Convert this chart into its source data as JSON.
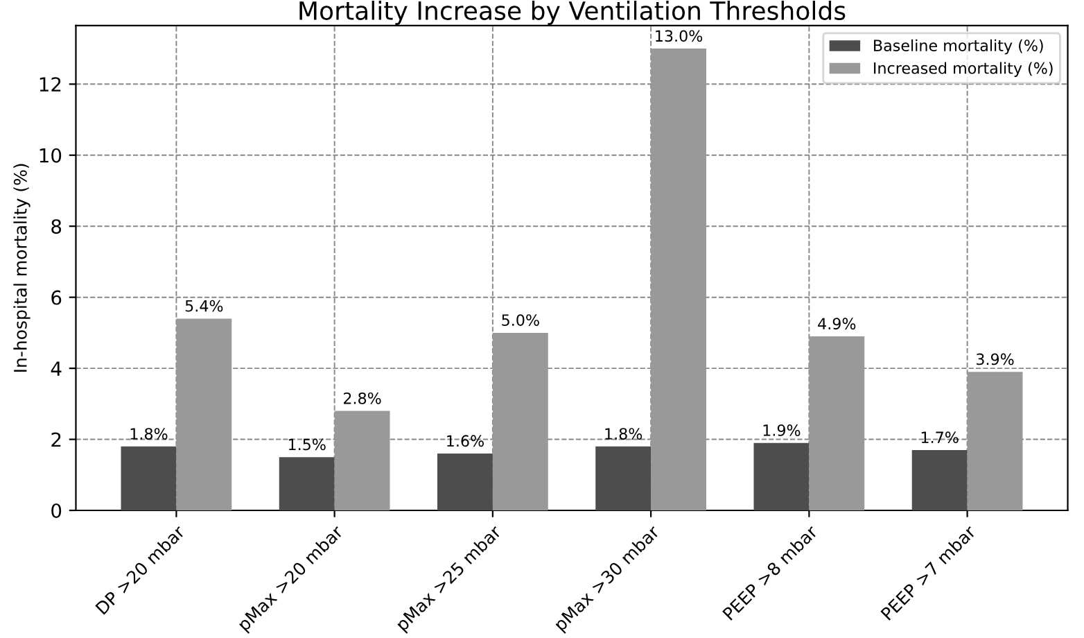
{
  "chart_data": {
    "type": "bar",
    "title": "Mortality Increase by Ventilation Thresholds",
    "ylabel": "In-hospital mortality (%)",
    "categories": [
      "DP >20 mbar",
      "pMax >20 mbar",
      "pMax >25 mbar",
      "pMax >30 mbar",
      "PEEP >8 mbar",
      "PEEP >7 mbar"
    ],
    "series": [
      {
        "name": "Baseline mortality (%)",
        "color": "#4d4d4d",
        "values": [
          1.8,
          1.5,
          1.6,
          1.8,
          1.9,
          1.7
        ],
        "value_labels": [
          "1.8%",
          "1.5%",
          "1.6%",
          "1.8%",
          "1.9%",
          "1.7%"
        ]
      },
      {
        "name": "Increased mortality (%)",
        "color": "#999999",
        "values": [
          5.4,
          2.8,
          5.0,
          13.0,
          4.9,
          3.9
        ],
        "value_labels": [
          "5.4%",
          "2.8%",
          "5.0%",
          "13.0%",
          "4.9%",
          "3.9%"
        ]
      }
    ],
    "ylim": [
      0,
      13.65
    ],
    "yticks": [
      0,
      2,
      4,
      6,
      8,
      10,
      12
    ],
    "grid": true,
    "legend": "top right"
  }
}
